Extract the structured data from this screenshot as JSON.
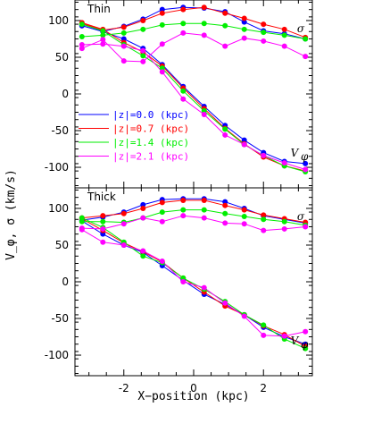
{
  "chart_data": [
    {
      "type": "line",
      "panel_label": "Thin",
      "ylabel": "V_φ, σ (km/s)",
      "xlabel": "",
      "xlim": [
        -3.4,
        3.4
      ],
      "ylim": [
        -128,
        128
      ],
      "xticks": [
        -2,
        0,
        2
      ],
      "yticks": [
        -100,
        -50,
        0,
        50,
        100
      ],
      "ytick_labels": [
        "-100",
        "-50",
        "0",
        "50",
        "100"
      ],
      "annotations": {
        "sigma": "σ",
        "vphi": "V",
        "vphi_sub": "φ"
      },
      "legend_placement": "middle-left",
      "x": [
        -3.2,
        -2.6,
        -2.0,
        -1.45,
        -0.9,
        -0.3,
        0.3,
        0.9,
        1.45,
        2.0,
        2.6,
        3.2
      ],
      "series": [
        {
          "name": "|z|=0.0 (kpc)",
          "color": "#0000ff",
          "sigma": [
            93,
            85,
            92,
            102,
            115,
            118,
            117,
            112,
            98,
            86,
            82,
            75
          ],
          "vphi": [
            93,
            85,
            75,
            62,
            40,
            10,
            -17,
            -43,
            -63,
            -80,
            -92,
            -95
          ]
        },
        {
          "name": "|z|=0.7 (kpc)",
          "color": "#ff0000",
          "sigma": [
            96,
            87,
            91,
            100,
            110,
            115,
            118,
            110,
            103,
            95,
            88,
            77
          ],
          "vphi": [
            97,
            88,
            70,
            57,
            38,
            8,
            -20,
            -47,
            -68,
            -86,
            -98,
            -105
          ]
        },
        {
          "name": "|z|=1.4 (kpc)",
          "color": "#00ee00",
          "sigma": [
            78,
            80,
            83,
            88,
            94,
            96,
            96,
            93,
            88,
            84,
            80,
            75
          ],
          "vphi": [
            95,
            86,
            67,
            52,
            35,
            4,
            -23,
            -48,
            -69,
            -84,
            -98,
            -106
          ]
        },
        {
          "name": "|z|=2.1 (kpc)",
          "color": "#ff00ff",
          "sigma": [
            62,
            74,
            45,
            44,
            68,
            83,
            80,
            65,
            76,
            72,
            65,
            51
          ],
          "vphi": [
            67,
            68,
            65,
            59,
            30,
            -7,
            -28,
            -56,
            -69,
            -84,
            -94,
            -103
          ]
        }
      ]
    },
    {
      "type": "line",
      "panel_label": "Thick",
      "ylabel": "V_φ, σ (km/s)",
      "xlabel": "X−position (kpc)",
      "xlim": [
        -3.4,
        3.4
      ],
      "ylim": [
        -128,
        128
      ],
      "xticks": [
        -2,
        0,
        2
      ],
      "xtick_labels": [
        "-2",
        "0",
        "2"
      ],
      "yticks": [
        -100,
        -50,
        0,
        50,
        100
      ],
      "ytick_labels": [
        "-100",
        "-50",
        "0",
        "50",
        "100"
      ],
      "annotations": {
        "sigma": "σ",
        "vphi": "V",
        "vphi_sub": "φ"
      },
      "x": [
        -3.2,
        -2.6,
        -2.0,
        -1.45,
        -0.9,
        -0.3,
        0.3,
        0.9,
        1.45,
        2.0,
        2.6,
        3.2
      ],
      "series": [
        {
          "name": "|z|=0.0 (kpc)",
          "color": "#0000ff",
          "sigma": [
            84,
            88,
            95,
            105,
            112,
            113,
            113,
            109,
            100,
            90,
            85,
            80
          ],
          "vphi": [
            83,
            65,
            50,
            40,
            22,
            2,
            -17,
            -31,
            -45,
            -62,
            -75,
            -85
          ]
        },
        {
          "name": "|z|=0.7 (kpc)",
          "color": "#ff0000",
          "sigma": [
            87,
            90,
            93,
            100,
            108,
            111,
            111,
            104,
            98,
            91,
            86,
            81
          ],
          "vphi": [
            86,
            70,
            53,
            41,
            27,
            5,
            -14,
            -33,
            -45,
            -60,
            -72,
            -88
          ]
        },
        {
          "name": "|z|=1.4 (kpc)",
          "color": "#00ee00",
          "sigma": [
            82,
            82,
            81,
            87,
            95,
            98,
            98,
            93,
            89,
            85,
            82,
            77
          ],
          "vphi": [
            87,
            74,
            54,
            35,
            26,
            5,
            -10,
            -27,
            -45,
            -59,
            -78,
            -91
          ]
        },
        {
          "name": "|z|=2.1 (kpc)",
          "color": "#ff00ff",
          "sigma": [
            73,
            72,
            79,
            87,
            82,
            90,
            87,
            80,
            79,
            70,
            72,
            75
          ],
          "vphi": [
            71,
            54,
            50,
            42,
            28,
            0,
            -8,
            -29,
            -47,
            -73,
            -74,
            -68
          ]
        }
      ]
    }
  ]
}
